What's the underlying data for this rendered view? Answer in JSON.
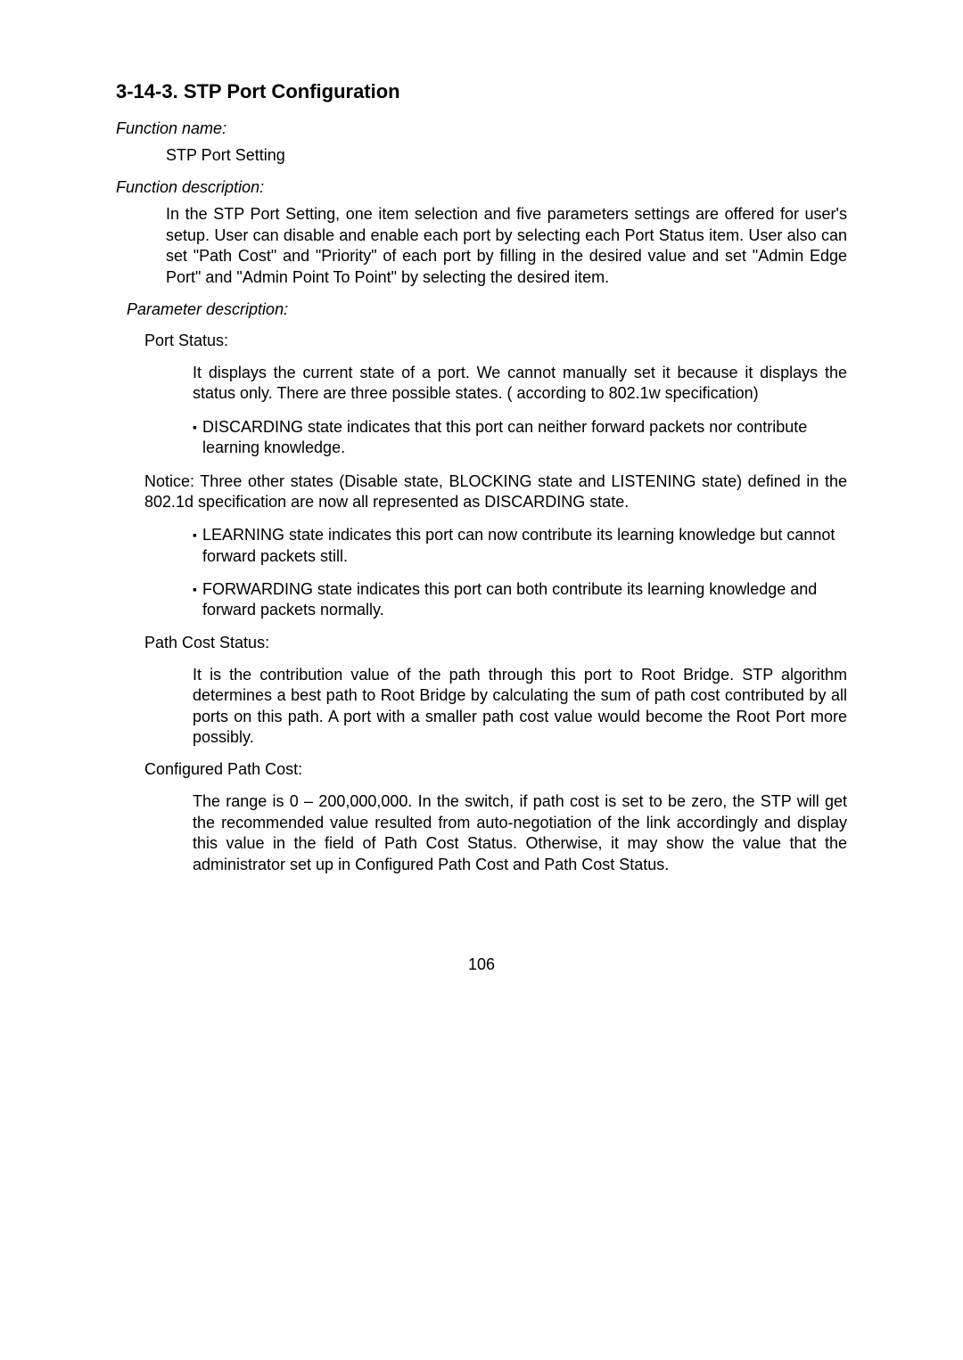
{
  "heading": "3-14-3. STP Port Configuration",
  "fn_name_label": "Function name:",
  "fn_name_value": "STP Port Setting",
  "fn_desc_label": "Function description:",
  "fn_desc_text": "In the STP Port Setting, one item selection and five parameters settings are offered for user's setup. User can disable and enable each port by selecting each Port Status item. User also can set \"Path Cost\" and \"Priority\" of each port by filling in the desired value and set \"Admin Edge Port\" and \"Admin Point To Point\" by selecting the desired item.",
  "param_desc_label": "Parameter description:",
  "port_status_label": "Port Status:",
  "port_status_text": "It displays the current state of a port. We cannot manually set it because it displays the status only. There are three possible states. ( according to 802.1w specification)",
  "bullet1": "DISCARDING state indicates that this port can neither forward packets nor contribute learning knowledge.",
  "notice_text": "Notice: Three other states (Disable state, BLOCKING state and LISTENING state) defined in the 802.1d specification are now all represented as DISCARDING state.",
  "bullet2": "LEARNING state indicates this port can now contribute its learning knowledge but cannot forward packets still.",
  "bullet3": "FORWARDING state indicates this port can both contribute its learning knowledge and forward packets normally.",
  "path_cost_label": "Path Cost Status:",
  "path_cost_text": "It is the contribution value of the path through this port to Root Bridge. STP algorithm determines a best path to Root Bridge by calculating the sum of path cost contributed by all ports on this path. A port with a smaller path cost value would become the Root Port more possibly.",
  "config_path_label": "Configured Path Cost:",
  "config_path_text": "The range is 0 – 200,000,000. In the switch, if path cost is set to be zero, the STP will get the recommended value resulted from auto-negotiation of the link accordingly and display this value in the field of Path Cost Status. Otherwise, it may show the value that the administrator set up in Configured Path Cost and Path Cost Status.",
  "page_number": "106"
}
